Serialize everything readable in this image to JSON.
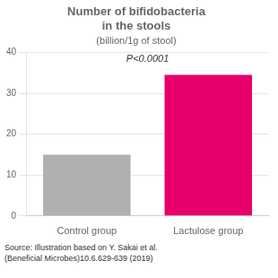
{
  "chart_data": {
    "type": "bar",
    "title": [
      "Number of bifidobacteria",
      "in the stools"
    ],
    "subtitle": "(billion/1g of stool)",
    "categories": [
      "Control group",
      "Lactulose group"
    ],
    "values": [
      15.0,
      34.5
    ],
    "colors": [
      "#b0b0b0",
      "#e8006a"
    ],
    "ylim": [
      0,
      40
    ],
    "yticks": [
      0,
      10,
      20,
      30,
      40
    ],
    "grid": true,
    "annotations": [
      "P<0.0001"
    ],
    "source": [
      "Source: Illustration based on Y. Sakai et al.",
      "(Beneficial Microbes)10.6.629-639 (2019)"
    ]
  }
}
